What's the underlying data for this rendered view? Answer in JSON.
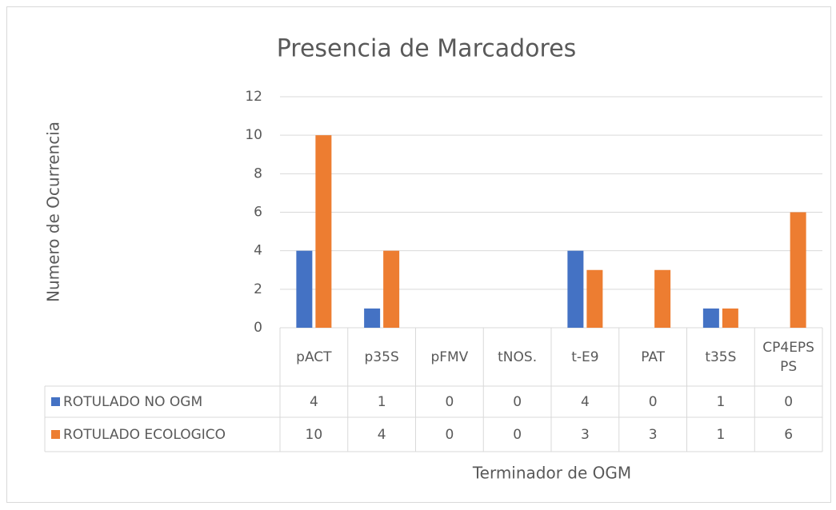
{
  "chart_data": {
    "type": "bar",
    "title": "Presencia de Marcadores",
    "x_label": "Terminador de OGM",
    "y_label": "Numero de Ocurrencia",
    "categories": [
      "pACT",
      "p35S",
      "pFMV",
      "tNOS.",
      "t-E9",
      "PAT",
      "t35S",
      "CP4EPSPS"
    ],
    "series": [
      {
        "name": "ROTULADO NO OGM",
        "color": "#4472c4",
        "values": [
          4,
          1,
          0,
          0,
          4,
          0,
          1,
          0
        ]
      },
      {
        "name": "ROTULADO ECOLOGICO",
        "color": "#ed7d31",
        "values": [
          10,
          4,
          0,
          0,
          3,
          3,
          1,
          6
        ]
      }
    ],
    "ylim": [
      0,
      12
    ],
    "yticks": [
      0,
      2,
      4,
      6,
      8,
      10,
      12
    ],
    "grid": true,
    "data_table": true
  }
}
